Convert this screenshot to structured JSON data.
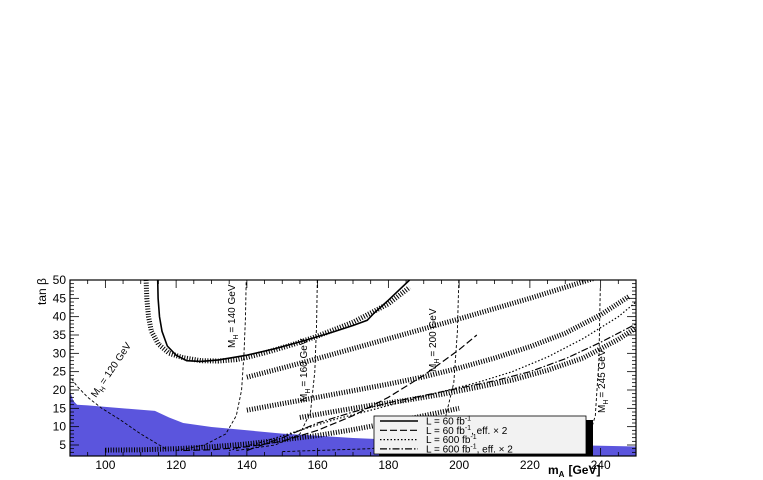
{
  "chart_data": {
    "type": "line",
    "xlabel": "m_A [GeV]",
    "ylabel": "tan β",
    "xlim": [
      90,
      250
    ],
    "ylim": [
      2,
      50
    ],
    "x_ticks": [
      100,
      120,
      140,
      160,
      180,
      200,
      220,
      240
    ],
    "y_ticks": [
      5,
      10,
      15,
      20,
      25,
      30,
      35,
      40,
      45,
      50
    ],
    "excluded_region": {
      "color": "#5b55dd",
      "x": [
        90,
        91,
        92,
        95,
        100,
        110,
        114,
        118,
        122,
        130,
        140,
        150,
        160,
        170,
        180,
        190,
        200,
        210,
        220,
        230,
        240,
        250
      ],
      "y": [
        19.5,
        17,
        16,
        15.8,
        15.4,
        14.6,
        14.3,
        12.5,
        11,
        9.9,
        9.0,
        8.1,
        7.5,
        6.9,
        6.5,
        6.1,
        5.8,
        5.5,
        5.2,
        5.0,
        4.8,
        4.6
      ]
    },
    "mh_contours": [
      {
        "label": "M_h = 120 GeV",
        "x": [
          117,
          110,
          104,
          99,
          95,
          92,
          90.5
        ],
        "y": [
          4,
          8,
          12,
          15,
          18,
          21,
          23
        ]
      },
      {
        "label": "M_h = 140 GeV",
        "x": [
          120,
          128,
          134,
          137,
          138.5,
          139.2,
          139.6,
          139.8
        ],
        "y": [
          3.5,
          5,
          8,
          13,
          20,
          30,
          40,
          50
        ]
      },
      {
        "label": "M_h = 160 GeV",
        "x": [
          137,
          148,
          155,
          158,
          159.2,
          159.7,
          159.9
        ],
        "y": [
          3.5,
          5,
          8,
          14,
          25,
          38,
          50
        ]
      },
      {
        "label": "M_h = 200 GeV",
        "x": [
          150,
          175,
          190,
          196,
          198.5,
          199.5,
          199.9
        ],
        "y": [
          3.2,
          4,
          6,
          12,
          22,
          36,
          50
        ]
      },
      {
        "label": "M_h = 245 GeV",
        "x": [
          220,
          231,
          236.5,
          238.5,
          239.5,
          239.9
        ],
        "y": [
          3.2,
          4,
          6.5,
          13,
          28,
          48
        ]
      }
    ],
    "series": [
      {
        "name": "L = 60 fb⁻¹",
        "style": "solid",
        "x": [
          114.8,
          114.9,
          115.3,
          116,
          117.5,
          120,
          123,
          127,
          132,
          140,
          148,
          156,
          164,
          170,
          174,
          176,
          180,
          186
        ],
        "y": [
          50,
          45,
          40,
          36,
          32,
          29.5,
          28,
          27.8,
          28.2,
          29.5,
          31.3,
          33.4,
          35.7,
          37.6,
          39,
          41,
          44.5,
          50
        ]
      },
      {
        "name": "L = 60 fb⁻¹, eff. × 2",
        "style": "dashed",
        "x": [
          122,
          130,
          140,
          150,
          160,
          170,
          180,
          190,
          200,
          205
        ],
        "y": [
          3.5,
          3.7,
          4.5,
          6,
          9,
          13,
          18,
          24,
          31,
          35
        ]
      },
      {
        "name": "L = 600 fb⁻¹",
        "style": "dotted",
        "x": [
          135,
          145,
          155,
          165,
          175,
          185,
          195,
          205,
          215,
          225,
          235,
          245,
          250
        ],
        "y": [
          3.5,
          6,
          9,
          12,
          14.5,
          17,
          19.5,
          22,
          25,
          29,
          34,
          40,
          44
        ]
      },
      {
        "name": "L = 600 fb⁻¹, eff. × 2",
        "style": "dash-dot",
        "x": [
          140,
          150,
          160,
          170,
          180,
          190,
          200,
          210,
          220,
          230,
          240,
          250
        ],
        "y": [
          3.5,
          7,
          11,
          14,
          16.5,
          18.5,
          20.5,
          22.5,
          25,
          28.5,
          33,
          38
        ]
      }
    ],
    "hatched_bands": [
      {
        "x": [
          111.5,
          111.7,
          112.2,
          113,
          115,
          118,
          122,
          127,
          132,
          137,
          140,
          146,
          153,
          160,
          170,
          180,
          186
        ],
        "y": [
          50,
          45,
          40,
          36,
          32.5,
          30,
          28.8,
          28,
          27.9,
          28.3,
          28.9,
          30.4,
          32.4,
          34.7,
          38.5,
          43.5,
          48
        ]
      },
      {
        "x": [
          140,
          150,
          160,
          170,
          180,
          190,
          200,
          210,
          220,
          230,
          240,
          250
        ],
        "y": [
          23.5,
          26,
          28.6,
          31.3,
          34,
          36.7,
          39.4,
          42.2,
          45,
          48,
          51,
          54
        ]
      },
      {
        "x": [
          140,
          150,
          160,
          170,
          180,
          190,
          200,
          210,
          220,
          230,
          240,
          248
        ],
        "y": [
          14.5,
          16.3,
          18,
          19.8,
          21.6,
          23.6,
          26,
          28.7,
          31.8,
          35.5,
          40.5,
          45.5
        ]
      },
      {
        "x": [
          155,
          165,
          175,
          185,
          195,
          205,
          215,
          225,
          235,
          245,
          250
        ],
        "y": [
          12.5,
          14.2,
          15.8,
          17.2,
          18.8,
          20.7,
          22.7,
          25.4,
          28.7,
          33.8,
          37
        ]
      },
      {
        "x": [
          100,
          110,
          120,
          130,
          140,
          150,
          160,
          170,
          180,
          190,
          200
        ],
        "y": [
          3.6,
          3.7,
          4,
          4.5,
          5.3,
          6.4,
          7.6,
          9.2,
          11,
          13,
          15
        ]
      }
    ],
    "legend": {
      "placement": "bottom-right",
      "entries": [
        {
          "text": "L = 60 fb",
          "suffix": "",
          "style": "solid"
        },
        {
          "text": "L = 60 fb",
          "suffix": ", eff. × 2",
          "style": "dashed"
        },
        {
          "text": "L = 600 fb",
          "suffix": "",
          "style": "dotted"
        },
        {
          "text": "L = 600 fb",
          "suffix": ", eff. × 2",
          "style": "dash-dot"
        }
      ],
      "superscript": "-1"
    }
  },
  "labels": {
    "contour_mh120": "M",
    "contour_mh140": "M",
    "contour_mh160": "M",
    "contour_mh200": "M",
    "contour_mh245": "M",
    "sub_h": "H",
    "val_120": "= 120 GeV",
    "val_140": "= 140 GeV",
    "val_160": "= 160 GeV",
    "val_200": "= 200 GeV",
    "val_245": "= 245 GeV"
  },
  "axis": {
    "x_title_main": "m",
    "x_title_sub": "A",
    "x_title_unit": "[GeV]",
    "y_title": "tan β"
  }
}
